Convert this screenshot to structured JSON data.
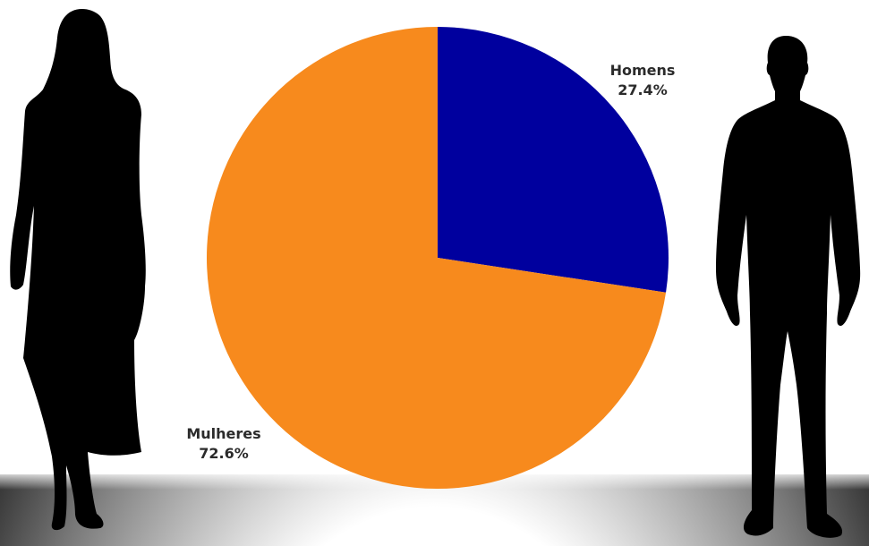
{
  "chart_data": {
    "type": "pie",
    "slices": [
      {
        "label": "Homens",
        "value": 27.4,
        "value_label": "27.4%",
        "color": "#00009e"
      },
      {
        "label": "Mulheres",
        "value": 72.6,
        "value_label": "72.6%",
        "color": "#f78a1d"
      }
    ],
    "start_angle": "12 o'clock",
    "direction": "clockwise",
    "legend": "none"
  },
  "decoration": {
    "left_figure": "woman-silhouette-icon",
    "right_figure": "man-silhouette-icon",
    "figure_color": "#000000"
  }
}
